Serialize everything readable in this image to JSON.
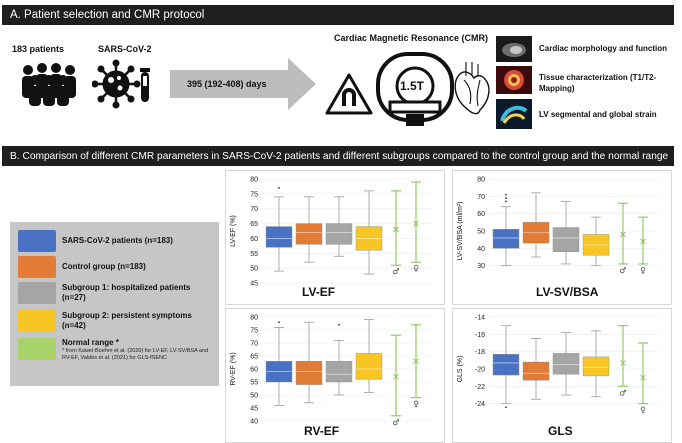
{
  "panel_a": {
    "heading": "A. Patient selection and CMR protocol",
    "patients_label": "183 patients",
    "virus_label": "SARS-CoV-2",
    "arrow_label": "395 (192-408) days",
    "cmr_title": "Cardiac Magnetic Resonance (CMR)",
    "scanner_label": "1.5T",
    "protocol_items": [
      "Cardiac morphology and function",
      "Tissue characterization (T1/T2-\nMapping)",
      "LV segmental and global strain"
    ]
  },
  "panel_b": {
    "heading": "B. Comparison of different CMR parameters in SARS-CoV-2 patients and different subgroups compared to the control group and the normal range"
  },
  "legend": {
    "items": [
      {
        "label": "SARS-CoV-2 patients (n=183)",
        "color": "#4a72c4"
      },
      {
        "label": "Control group (n=183)",
        "color": "#e17b35"
      },
      {
        "label": "Subgroup 1: hospitalized patients (n=27)",
        "color": "#a5a5a5"
      },
      {
        "label": "Subgroup 2: persistent symptoms (n=42)",
        "color": "#f8c624"
      },
      {
        "label": "Normal range *",
        "color": "#a8d36b"
      }
    ],
    "footnote": "* from Kawel-Boehm et al. (2020) for LV-EF, LV-SV/BSA and RV-EF, Valdés et al. (2021) for GLS-fSENC"
  },
  "colors": {
    "covid": "#4a72c4",
    "control": "#e17b35",
    "sub1": "#a5a5a5",
    "sub2": "#f8c624",
    "normal": "#8fc45a"
  },
  "symbols": {
    "male": "♂",
    "female": "♀"
  },
  "chart_data": [
    {
      "type": "box",
      "title": "LV-EF",
      "ylabel": "LV-EF (%)",
      "ylim": [
        45,
        80
      ],
      "yticks": [
        45,
        50,
        55,
        60,
        65,
        70,
        75,
        80
      ],
      "tick_labels": [
        "45",
        "50",
        "55",
        "60",
        "65",
        "70",
        "75",
        "80"
      ],
      "groups": [
        {
          "name": "SARS-CoV-2 patients",
          "min": 49,
          "q1": 57,
          "median": 60,
          "q3": 64,
          "max": 74,
          "outliers": [
            77
          ]
        },
        {
          "name": "Control group",
          "min": 52,
          "q1": 58,
          "median": 62,
          "q3": 65,
          "max": 74,
          "outliers": []
        },
        {
          "name": "Subgroup 1",
          "min": 54,
          "q1": 58,
          "median": 62,
          "q3": 65,
          "max": 74,
          "outliers": []
        },
        {
          "name": "Subgroup 2",
          "min": 48,
          "q1": 56,
          "median": 60,
          "q3": 64,
          "max": 76,
          "outliers": []
        }
      ],
      "normal_ranges": [
        {
          "sex": "male",
          "low": 51,
          "mean": 63,
          "high": 76
        },
        {
          "sex": "female",
          "low": 52,
          "mean": 65,
          "high": 79
        }
      ]
    },
    {
      "type": "box",
      "title": "LV-SV/BSA",
      "ylabel": "LV-SV/BSA (ml/m²)",
      "ylim": [
        20,
        80
      ],
      "yticks": [
        30,
        40,
        50,
        60,
        70,
        80
      ],
      "tick_labels": [
        "30",
        "40",
        "50",
        "60",
        "70",
        "80"
      ],
      "groups": [
        {
          "name": "SARS-CoV-2 patients",
          "min": 30,
          "q1": 40,
          "median": 46,
          "q3": 51,
          "max": 64,
          "outliers": [
            67,
            69,
            71
          ]
        },
        {
          "name": "Control group",
          "min": 35,
          "q1": 43,
          "median": 49,
          "q3": 55,
          "max": 72,
          "outliers": []
        },
        {
          "name": "Subgroup 1",
          "min": 31,
          "q1": 38,
          "median": 46,
          "q3": 52,
          "max": 67,
          "outliers": []
        },
        {
          "name": "Subgroup 2",
          "min": 30,
          "q1": 36,
          "median": 42,
          "q3": 48,
          "max": 58,
          "outliers": []
        }
      ],
      "normal_ranges": [
        {
          "sex": "male",
          "low": 31,
          "mean": 48,
          "high": 66
        },
        {
          "sex": "female",
          "low": 31,
          "mean": 44,
          "high": 58
        }
      ]
    },
    {
      "type": "box",
      "title": "RV-EF",
      "ylabel": "RV-EF (%)",
      "ylim": [
        40,
        80
      ],
      "yticks": [
        40,
        45,
        50,
        55,
        60,
        65,
        70,
        75,
        80
      ],
      "tick_labels": [
        "40",
        "45",
        "50",
        "55",
        "60",
        "65",
        "70",
        "75",
        "80"
      ],
      "groups": [
        {
          "name": "SARS-CoV-2 patients",
          "min": 46,
          "q1": 55,
          "median": 59,
          "q3": 63,
          "max": 76,
          "outliers": [
            78
          ]
        },
        {
          "name": "Control group",
          "min": 47,
          "q1": 54,
          "median": 59,
          "q3": 63,
          "max": 78,
          "outliers": []
        },
        {
          "name": "Subgroup 1",
          "min": 50,
          "q1": 55,
          "median": 58,
          "q3": 63,
          "max": 71,
          "outliers": [
            77
          ]
        },
        {
          "name": "Subgroup 2",
          "min": 51,
          "q1": 56,
          "median": 60,
          "q3": 66,
          "max": 79,
          "outliers": []
        }
      ],
      "normal_ranges": [
        {
          "sex": "male",
          "low": 42,
          "mean": 57,
          "high": 73
        },
        {
          "sex": "female",
          "low": 49,
          "mean": 63,
          "high": 77
        }
      ]
    },
    {
      "type": "box",
      "title": "GLS",
      "ylabel": "GLS (%)",
      "ylim": [
        -26,
        -14
      ],
      "yticks": [
        -24,
        -22,
        -20,
        -18,
        -16,
        -14
      ],
      "tick_labels": [
        "-24",
        "-22",
        "-20",
        "-18",
        "-16",
        "-14"
      ],
      "groups": [
        {
          "name": "SARS-CoV-2 patients",
          "min": -24,
          "q1": -20.7,
          "median": -19.3,
          "q3": -18.3,
          "max": -15,
          "outliers": [
            -24.4
          ]
        },
        {
          "name": "Control group",
          "min": -23.5,
          "q1": -21.3,
          "median": -20.5,
          "q3": -19.2,
          "max": -16.5,
          "outliers": []
        },
        {
          "name": "Subgroup 1",
          "min": -23,
          "q1": -20.6,
          "median": -19.5,
          "q3": -18.2,
          "max": -15.8,
          "outliers": []
        },
        {
          "name": "Subgroup 2",
          "min": -23.2,
          "q1": -20.8,
          "median": -19.8,
          "q3": -18.6,
          "max": -15.6,
          "outliers": []
        }
      ],
      "normal_ranges": [
        {
          "sex": "male",
          "low": -22,
          "mean": -19.3,
          "high": -15
        },
        {
          "sex": "female",
          "low": -24,
          "mean": -21,
          "high": -17
        }
      ]
    }
  ]
}
